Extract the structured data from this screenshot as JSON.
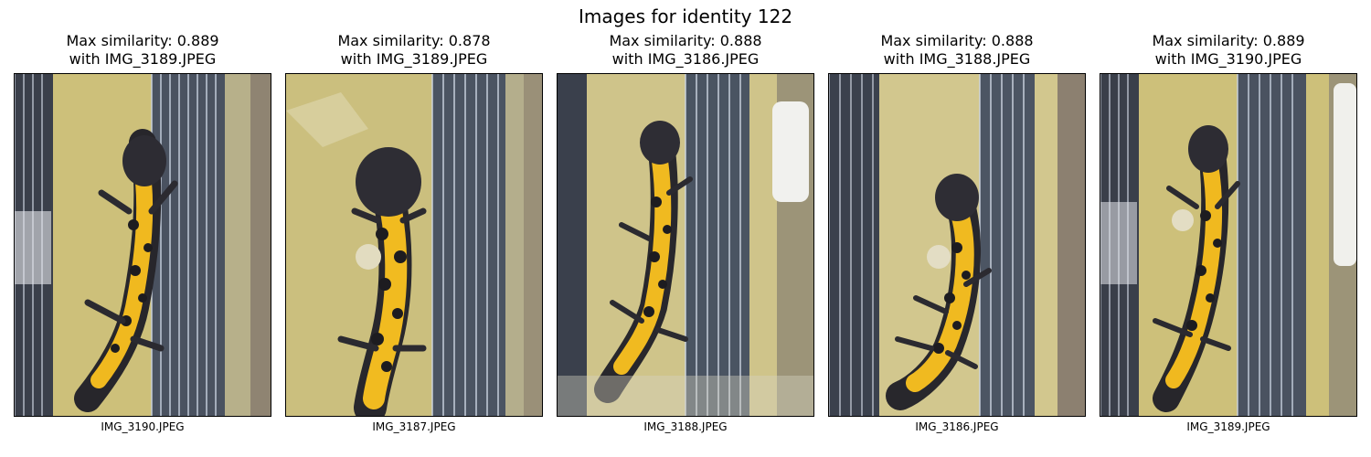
{
  "figure": {
    "title": "Images for identity 122"
  },
  "panels": [
    {
      "title_line1": "Max similarity: 0.889",
      "title_line2": "with IMG_3189.JPEG",
      "filename": "IMG_3190.JPEG"
    },
    {
      "title_line1": "Max similarity: 0.878",
      "title_line2": "with IMG_3189.JPEG",
      "filename": "IMG_3187.JPEG"
    },
    {
      "title_line1": "Max similarity: 0.888",
      "title_line2": "with IMG_3186.JPEG",
      "filename": "IMG_3188.JPEG"
    },
    {
      "title_line1": "Max similarity: 0.888",
      "title_line2": "with IMG_3188.JPEG",
      "filename": "IMG_3186.JPEG"
    },
    {
      "title_line1": "Max similarity: 0.889",
      "title_line2": "with IMG_3190.JPEG",
      "filename": "IMG_3189.JPEG"
    }
  ]
}
